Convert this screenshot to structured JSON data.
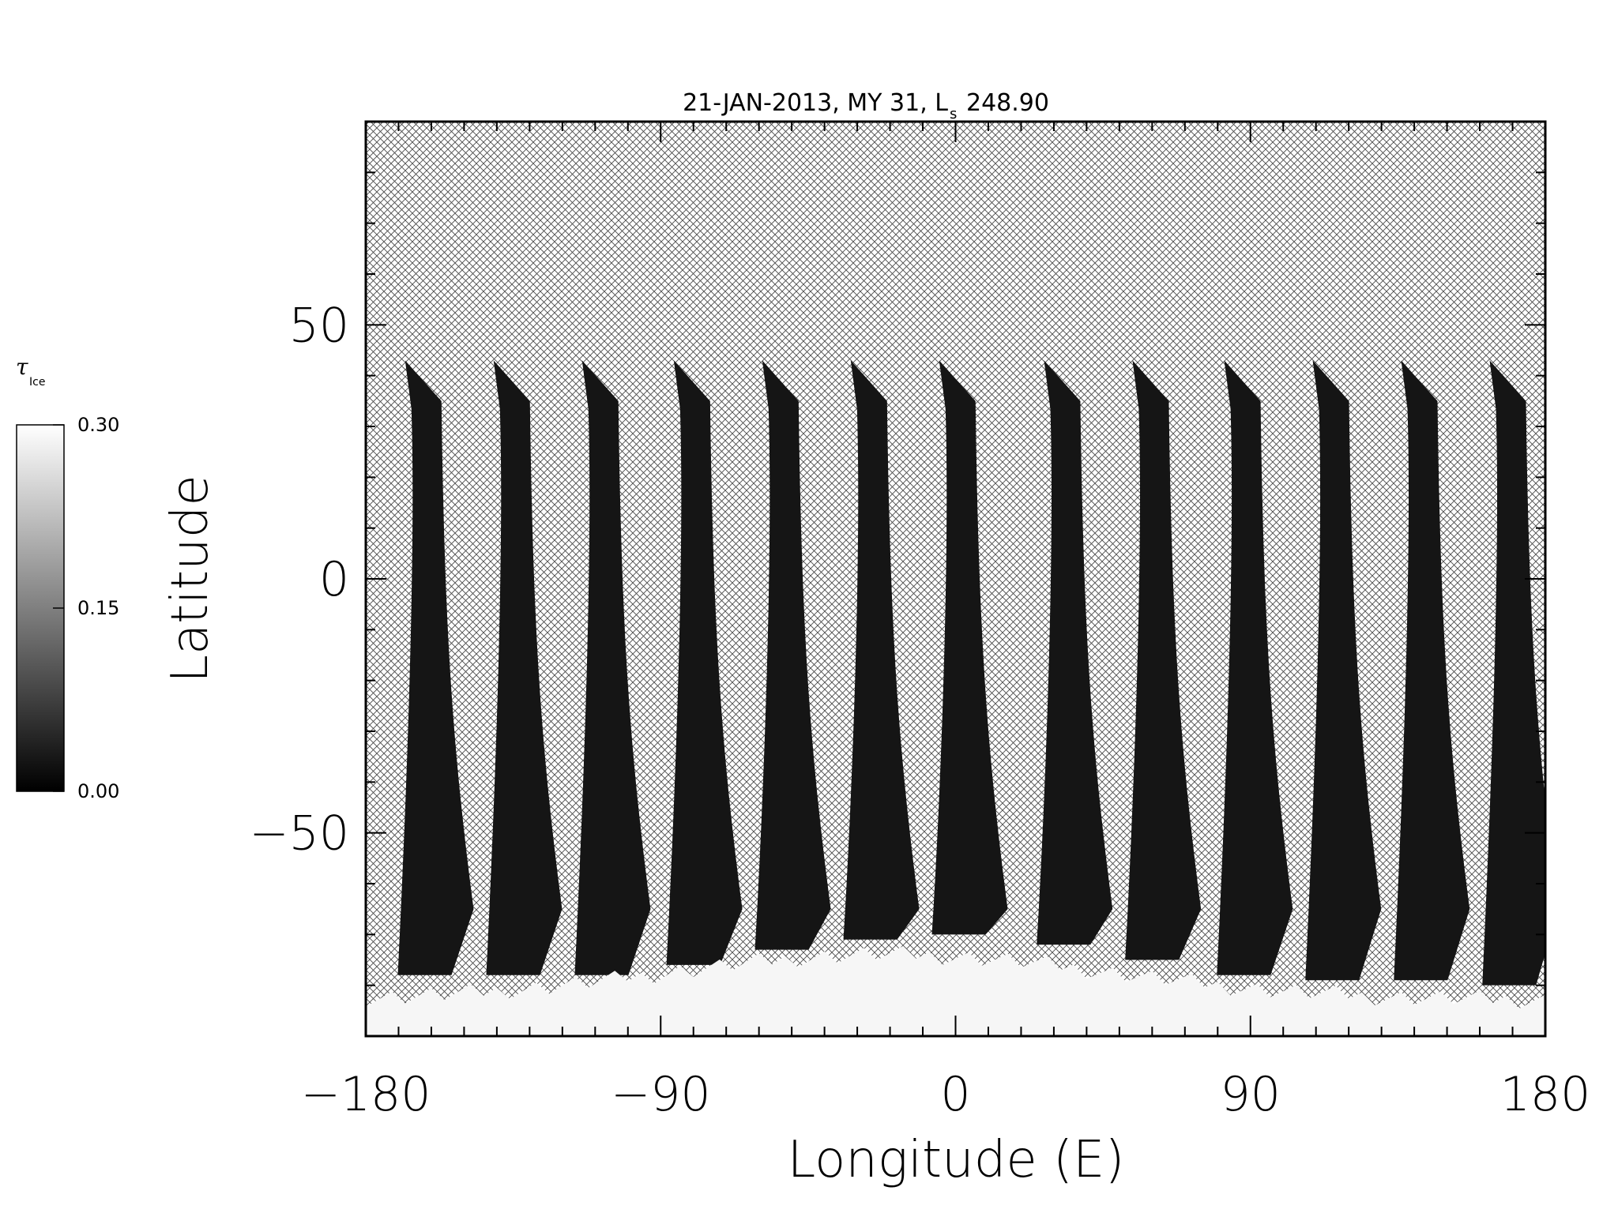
{
  "chart_data": {
    "type": "heatmap",
    "title": "21-JAN-2013, MY 31,  L",
    "title_sub": "s",
    "title_value": "248.90",
    "xlabel": "Longitude (E)",
    "ylabel": "Latitude",
    "xlim": [
      -180,
      180
    ],
    "ylim": [
      -90,
      90
    ],
    "x_ticks": [
      {
        "value": -180,
        "label": "−180"
      },
      {
        "value": -90,
        "label": "−90"
      },
      {
        "value": 0,
        "label": "0"
      },
      {
        "value": 90,
        "label": "90"
      },
      {
        "value": 180,
        "label": "180"
      }
    ],
    "y_ticks": [
      {
        "value": 50,
        "label": "50"
      },
      {
        "value": 0,
        "label": "0"
      },
      {
        "value": -50,
        "label": "−50"
      }
    ],
    "no_data": "crosshatch",
    "swaths": [
      {
        "lon_top": -168,
        "lat_top": 43,
        "lon_bottom": -163,
        "lat_bottom": -78
      },
      {
        "lon_top": -141,
        "lat_top": 43,
        "lon_bottom": -136,
        "lat_bottom": -78
      },
      {
        "lon_top": -114,
        "lat_top": 43,
        "lon_bottom": -109,
        "lat_bottom": -78
      },
      {
        "lon_top": -86,
        "lat_top": 43,
        "lon_bottom": -81,
        "lat_bottom": -76
      },
      {
        "lon_top": -59,
        "lat_top": 43,
        "lon_bottom": -54,
        "lat_bottom": -73
      },
      {
        "lon_top": -32,
        "lat_top": 43,
        "lon_bottom": -27,
        "lat_bottom": -71
      },
      {
        "lon_top": -5,
        "lat_top": 43,
        "lon_bottom": 0,
        "lat_bottom": -70
      },
      {
        "lon_top": 27,
        "lat_top": 43,
        "lon_bottom": 32,
        "lat_bottom": -72
      },
      {
        "lon_top": 54,
        "lat_top": 43,
        "lon_bottom": 59,
        "lat_bottom": -75
      },
      {
        "lon_top": 82,
        "lat_top": 43,
        "lon_bottom": 87,
        "lat_bottom": -78
      },
      {
        "lon_top": 109,
        "lat_top": 43,
        "lon_bottom": 114,
        "lat_bottom": -79
      },
      {
        "lon_top": 136,
        "lat_top": 43,
        "lon_bottom": 141,
        "lat_bottom": -79
      },
      {
        "lon_top": 163,
        "lat_top": 43,
        "lon_bottom": 168,
        "lat_bottom": -80
      }
    ],
    "polar_cap": {
      "lat_edge_min": -83,
      "lat_edge_max": -74,
      "value": 0.3
    },
    "colorbar": {
      "label": "τ",
      "label_sub": "Ice",
      "min": 0.0,
      "max": 0.3,
      "ticks": [
        {
          "value": 0.3,
          "label": "0.30"
        },
        {
          "value": 0.15,
          "label": "0.15"
        },
        {
          "value": 0.0,
          "label": "0.00"
        }
      ]
    }
  }
}
